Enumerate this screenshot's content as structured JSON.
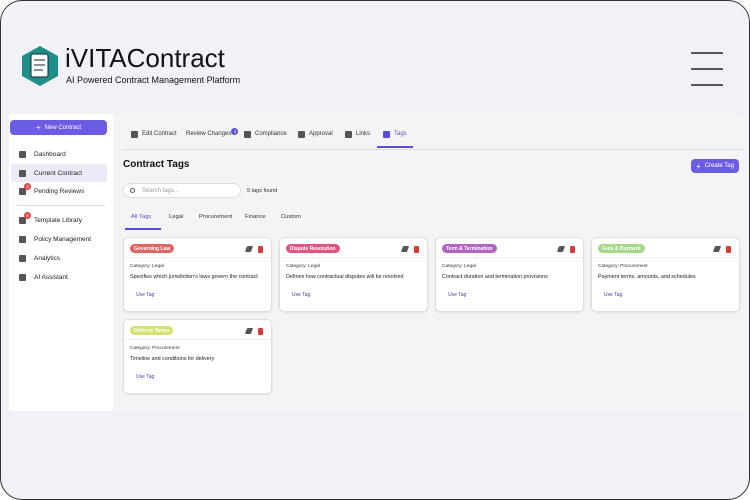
{
  "header": {
    "title": "iVITAContract",
    "subtitle": "AI Powered Contract Management Platform"
  },
  "sidebar": {
    "new_contract": "New Contract",
    "items": [
      {
        "label": "Dashboard"
      },
      {
        "label": "Current Contract",
        "active": true
      },
      {
        "label": "Pending Reviews",
        "badge": "3"
      },
      {
        "label": "Template Library",
        "badge": "5"
      },
      {
        "label": "Policy Management"
      },
      {
        "label": "Analytics"
      },
      {
        "label": "AI Assistant"
      }
    ]
  },
  "tabs": [
    {
      "label": "Edit Contract"
    },
    {
      "label": "Review Changes",
      "badge": "3"
    },
    {
      "label": "Compliance"
    },
    {
      "label": "Approval"
    },
    {
      "label": "Links"
    },
    {
      "label": "Tags",
      "active": true
    }
  ],
  "content": {
    "title": "Contract Tags",
    "create_button": "Create Tag",
    "search_placeholder": "Search tags...",
    "count_text": "5 tags found",
    "filters": [
      {
        "label": "All Tags",
        "active": true
      },
      {
        "label": "Legal"
      },
      {
        "label": "Procurement"
      },
      {
        "label": "Finance"
      },
      {
        "label": "Custom"
      }
    ],
    "cards": [
      {
        "tag": "Governing Law",
        "color": "#e06666",
        "category": "Category: Legal",
        "description": "Specifies which jurisdiction's laws govern the contract",
        "action": "Use Tag"
      },
      {
        "tag": "Dispute Resolution",
        "color": "#e05482",
        "category": "Category: Legal",
        "description": "Defines how contractual disputes will be resolved",
        "action": "Use Tag"
      },
      {
        "tag": "Term & Termination",
        "color": "#b065c2",
        "category": "Category: Legal",
        "description": "Contract duration and termination provisions",
        "action": "Use Tag"
      },
      {
        "tag": "Fees & Payment",
        "color": "#a6d88a",
        "category": "Category: Procurement",
        "description": "Payment terms, amounts, and schedules",
        "action": "Use Tag"
      },
      {
        "tag": "Delivery Terms",
        "color": "#d6e070",
        "category": "Category: Procurement",
        "description": "Timeline and conditions for delivery",
        "action": "Use Tag"
      }
    ]
  }
}
